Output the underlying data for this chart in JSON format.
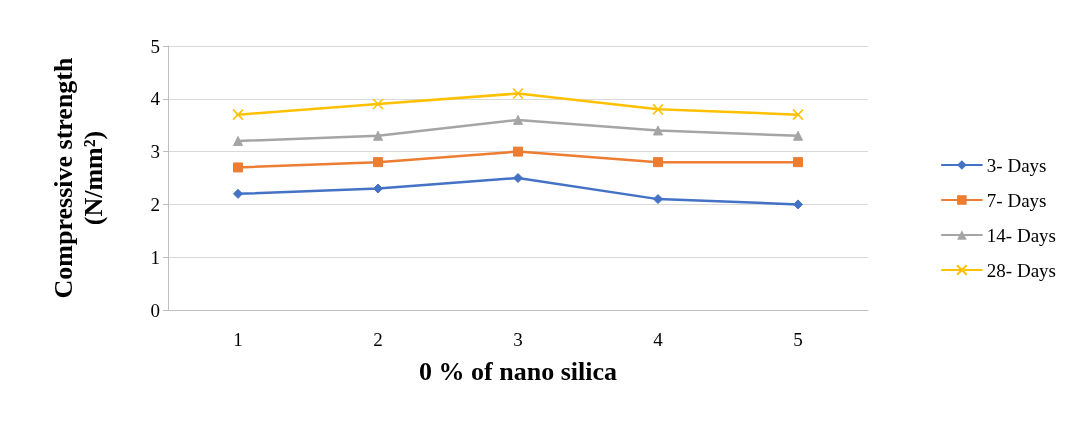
{
  "chart_data": {
    "type": "line",
    "xlabel": "0 % of nano silica",
    "ylabel": "Compressive strength\n(N/mm²)",
    "categories": [
      "1",
      "2",
      "3",
      "4",
      "5"
    ],
    "series": [
      {
        "name": "3- Days",
        "color": "#4472c4",
        "marker": "diamond",
        "values": [
          2.2,
          2.3,
          2.5,
          2.1,
          2.0
        ]
      },
      {
        "name": "7- Days",
        "color": "#ed7d31",
        "marker": "square",
        "values": [
          2.7,
          2.8,
          3.0,
          2.8,
          2.8
        ]
      },
      {
        "name": "14- Days",
        "color": "#a5a5a5",
        "marker": "triangle",
        "values": [
          3.2,
          3.3,
          3.6,
          3.4,
          3.3
        ]
      },
      {
        "name": "28- Days",
        "color": "#ffc000",
        "marker": "cross",
        "values": [
          3.7,
          3.9,
          4.1,
          3.8,
          3.7
        ]
      }
    ],
    "ylim": [
      0,
      5
    ],
    "yticks": [
      0,
      1,
      2,
      3,
      4,
      5
    ],
    "grid": "y",
    "legend": "right"
  }
}
